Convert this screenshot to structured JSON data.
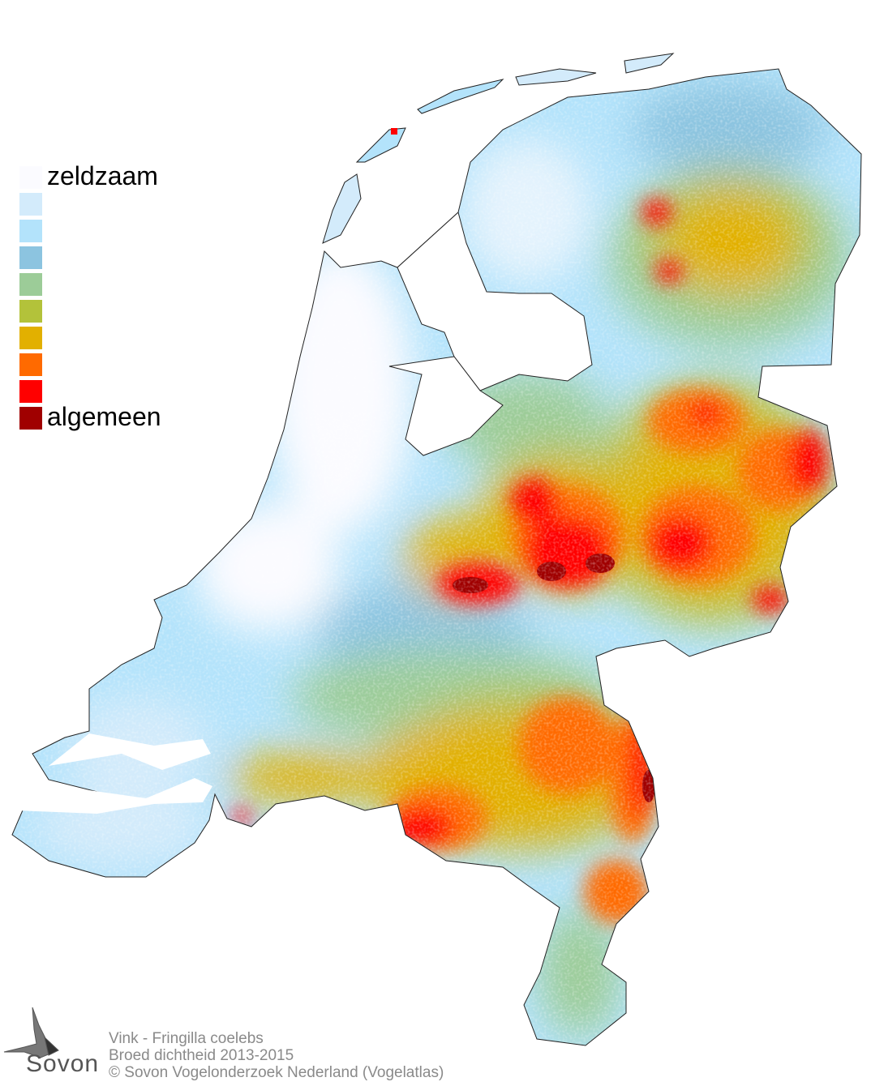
{
  "legend": {
    "items": [
      {
        "color": "#fbfbff",
        "label": "zeldzaam"
      },
      {
        "color": "#d3ebfb",
        "label": ""
      },
      {
        "color": "#b3e3fb",
        "label": ""
      },
      {
        "color": "#8cc4e0",
        "label": ""
      },
      {
        "color": "#9ccc98",
        "label": ""
      },
      {
        "color": "#b3c23a",
        "label": ""
      },
      {
        "color": "#e2b000",
        "label": ""
      },
      {
        "color": "#ff6a00",
        "label": ""
      },
      {
        "color": "#ff0000",
        "label": ""
      },
      {
        "color": "#a00000",
        "label": "algemeen"
      }
    ]
  },
  "caption": {
    "species": "Vink - Fringilla coelebs",
    "subtitle": "Broed dichtheid 2013-2015",
    "copyright": "© Sovon Vogelonderzoek Nederland (Vogelatlas)"
  },
  "logo": {
    "text": "Sovon",
    "icon": "swallow-icon"
  }
}
